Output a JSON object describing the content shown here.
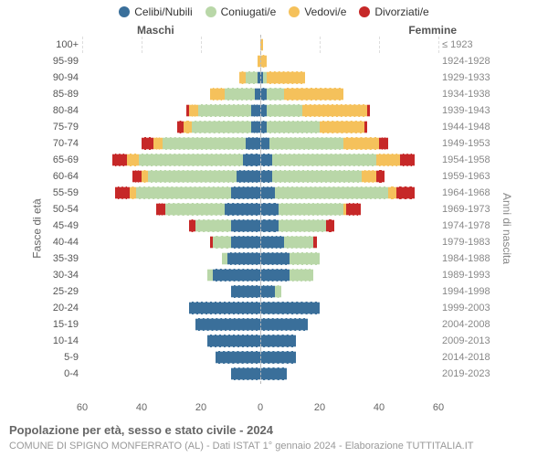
{
  "legend": {
    "items": [
      {
        "label": "Celibi/Nubili",
        "color": "#3a6f9a"
      },
      {
        "label": "Coniugati/e",
        "color": "#b9d7a8"
      },
      {
        "label": "Vedovi/e",
        "color": "#f5c15b"
      },
      {
        "label": "Divorziati/e",
        "color": "#c62828"
      }
    ]
  },
  "side_titles": {
    "left": "Maschi",
    "right": "Femmine"
  },
  "axis_titles": {
    "left": "Fasce di età",
    "right": "Anni di nascita"
  },
  "caption": "Popolazione per età, sesso e stato civile - 2024",
  "subcaption": "COMUNE DI SPIGNO MONFERRATO (AL) - Dati ISTAT 1° gennaio 2024 - Elaborazione TUTTITALIA.IT",
  "x": {
    "max": 60,
    "ticks": [
      60,
      40,
      20,
      0,
      20,
      40,
      60
    ]
  },
  "colors": {
    "celibi": "#3a6f9a",
    "coniugati": "#b9d7a8",
    "vedovi": "#f5c15b",
    "divorziati": "#c62828",
    "grid": "#dddddd",
    "bg": "#ffffff"
  },
  "rows": [
    {
      "age": "100+",
      "birth": "≤ 1923",
      "m": {
        "cel": 0,
        "con": 0,
        "ved": 0,
        "div": 0
      },
      "f": {
        "cel": 0,
        "con": 0,
        "ved": 1,
        "div": 0
      }
    },
    {
      "age": "95-99",
      "birth": "1924-1928",
      "m": {
        "cel": 0,
        "con": 0,
        "ved": 1,
        "div": 0
      },
      "f": {
        "cel": 0,
        "con": 0,
        "ved": 2,
        "div": 0
      }
    },
    {
      "age": "90-94",
      "birth": "1929-1933",
      "m": {
        "cel": 1,
        "con": 4,
        "ved": 2,
        "div": 0
      },
      "f": {
        "cel": 1,
        "con": 1,
        "ved": 13,
        "div": 0
      }
    },
    {
      "age": "85-89",
      "birth": "1934-1938",
      "m": {
        "cel": 2,
        "con": 10,
        "ved": 5,
        "div": 0
      },
      "f": {
        "cel": 2,
        "con": 6,
        "ved": 20,
        "div": 0
      }
    },
    {
      "age": "80-84",
      "birth": "1939-1943",
      "m": {
        "cel": 3,
        "con": 18,
        "ved": 3,
        "div": 1
      },
      "f": {
        "cel": 2,
        "con": 12,
        "ved": 22,
        "div": 1
      }
    },
    {
      "age": "75-79",
      "birth": "1944-1948",
      "m": {
        "cel": 3,
        "con": 20,
        "ved": 3,
        "div": 2
      },
      "f": {
        "cel": 2,
        "con": 18,
        "ved": 15,
        "div": 1
      }
    },
    {
      "age": "70-74",
      "birth": "1949-1953",
      "m": {
        "cel": 5,
        "con": 28,
        "ved": 3,
        "div": 4
      },
      "f": {
        "cel": 3,
        "con": 25,
        "ved": 12,
        "div": 3
      }
    },
    {
      "age": "65-69",
      "birth": "1954-1958",
      "m": {
        "cel": 6,
        "con": 35,
        "ved": 4,
        "div": 5
      },
      "f": {
        "cel": 4,
        "con": 35,
        "ved": 8,
        "div": 5
      }
    },
    {
      "age": "60-64",
      "birth": "1959-1963",
      "m": {
        "cel": 8,
        "con": 30,
        "ved": 2,
        "div": 3
      },
      "f": {
        "cel": 4,
        "con": 30,
        "ved": 5,
        "div": 3
      }
    },
    {
      "age": "55-59",
      "birth": "1964-1968",
      "m": {
        "cel": 10,
        "con": 32,
        "ved": 2,
        "div": 5
      },
      "f": {
        "cel": 5,
        "con": 38,
        "ved": 3,
        "div": 6
      }
    },
    {
      "age": "50-54",
      "birth": "1969-1973",
      "m": {
        "cel": 12,
        "con": 20,
        "ved": 0,
        "div": 3
      },
      "f": {
        "cel": 6,
        "con": 22,
        "ved": 1,
        "div": 5
      }
    },
    {
      "age": "45-49",
      "birth": "1974-1978",
      "m": {
        "cel": 10,
        "con": 12,
        "ved": 0,
        "div": 2
      },
      "f": {
        "cel": 6,
        "con": 16,
        "ved": 0,
        "div": 3
      }
    },
    {
      "age": "40-44",
      "birth": "1979-1983",
      "m": {
        "cel": 10,
        "con": 6,
        "ved": 0,
        "div": 1
      },
      "f": {
        "cel": 8,
        "con": 10,
        "ved": 0,
        "div": 1
      }
    },
    {
      "age": "35-39",
      "birth": "1984-1988",
      "m": {
        "cel": 11,
        "con": 2,
        "ved": 0,
        "div": 0
      },
      "f": {
        "cel": 10,
        "con": 10,
        "ved": 0,
        "div": 0
      }
    },
    {
      "age": "30-34",
      "birth": "1989-1993",
      "m": {
        "cel": 16,
        "con": 2,
        "ved": 0,
        "div": 0
      },
      "f": {
        "cel": 10,
        "con": 8,
        "ved": 0,
        "div": 0
      }
    },
    {
      "age": "25-29",
      "birth": "1994-1998",
      "m": {
        "cel": 10,
        "con": 0,
        "ved": 0,
        "div": 0
      },
      "f": {
        "cel": 5,
        "con": 2,
        "ved": 0,
        "div": 0
      }
    },
    {
      "age": "20-24",
      "birth": "1999-2003",
      "m": {
        "cel": 24,
        "con": 0,
        "ved": 0,
        "div": 0
      },
      "f": {
        "cel": 20,
        "con": 0,
        "ved": 0,
        "div": 0
      }
    },
    {
      "age": "15-19",
      "birth": "2004-2008",
      "m": {
        "cel": 22,
        "con": 0,
        "ved": 0,
        "div": 0
      },
      "f": {
        "cel": 16,
        "con": 0,
        "ved": 0,
        "div": 0
      }
    },
    {
      "age": "10-14",
      "birth": "2009-2013",
      "m": {
        "cel": 18,
        "con": 0,
        "ved": 0,
        "div": 0
      },
      "f": {
        "cel": 12,
        "con": 0,
        "ved": 0,
        "div": 0
      }
    },
    {
      "age": "5-9",
      "birth": "2014-2018",
      "m": {
        "cel": 15,
        "con": 0,
        "ved": 0,
        "div": 0
      },
      "f": {
        "cel": 12,
        "con": 0,
        "ved": 0,
        "div": 0
      }
    },
    {
      "age": "0-4",
      "birth": "2019-2023",
      "m": {
        "cel": 10,
        "con": 0,
        "ved": 0,
        "div": 0
      },
      "f": {
        "cel": 9,
        "con": 0,
        "ved": 0,
        "div": 0
      }
    }
  ]
}
